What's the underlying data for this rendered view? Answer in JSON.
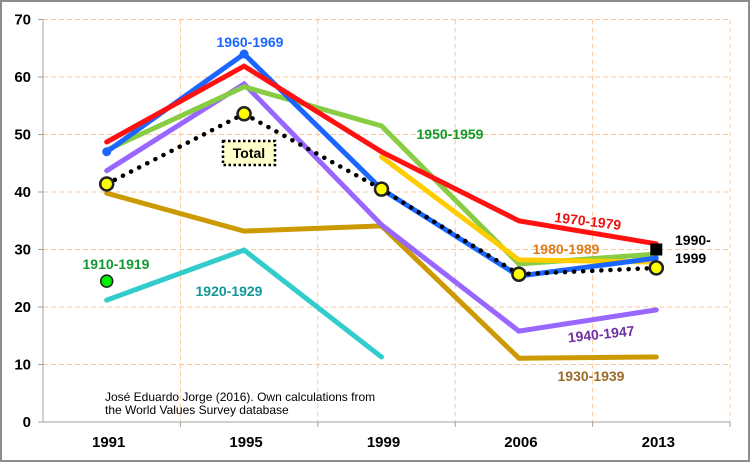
{
  "chart_data": {
    "type": "line",
    "title": "",
    "xlabel": "",
    "ylabel": "",
    "x": [
      "1991",
      "1995",
      "1999",
      "2006",
      "2013"
    ],
    "ylim": [
      0,
      70
    ],
    "yticks": [
      0,
      10,
      20,
      30,
      40,
      50,
      60,
      70
    ],
    "grid": true,
    "series": [
      {
        "name": "1930-1939",
        "color": "#cc9900",
        "values": [
          39.8,
          33.2,
          34.1,
          11.1,
          11.3
        ]
      },
      {
        "name": "1920-1929",
        "color": "#33cccc",
        "values": [
          21.2,
          29.9,
          11.3,
          null,
          null
        ]
      },
      {
        "name": "1940-1947",
        "color": "#9966ff",
        "values": [
          43.7,
          58.8,
          34.3,
          15.8,
          19.5
        ]
      },
      {
        "name": "1950-1959",
        "color": "#88cc44",
        "values": [
          47.3,
          58.3,
          51.5,
          27.5,
          29.2
        ]
      },
      {
        "name": "1980-1989",
        "color": "#ffcc00",
        "values": [
          null,
          null,
          46.1,
          28.2,
          27.8
        ]
      },
      {
        "name": "1960-1969",
        "color": "#1a66ff",
        "values": [
          47.0,
          64.0,
          40.5,
          25.4,
          28.5
        ]
      },
      {
        "name": "1970-1979",
        "color": "#ff1111",
        "values": [
          48.7,
          61.9,
          47.0,
          35.0,
          31.0
        ]
      },
      {
        "name": "Total",
        "color": "#000000",
        "style": "dotted",
        "marker": "yellow-circle",
        "values": [
          41.4,
          53.6,
          40.5,
          25.7,
          26.8
        ]
      },
      {
        "name": "1910-1919",
        "color": "#00ee00",
        "marker": "green-circle",
        "values": [
          24.5,
          null,
          null,
          null,
          null
        ]
      },
      {
        "name": "1990-1999",
        "color": "#000000",
        "marker": "black-square",
        "values": [
          null,
          null,
          null,
          null,
          30.0
        ]
      }
    ],
    "labels": {
      "s1960": {
        "text": "1960-1969",
        "color": "#1a66ff"
      },
      "s1950": {
        "text": "1950-1959",
        "color": "#119922"
      },
      "s1970": {
        "text": "1970-1979",
        "color": "#ee1111"
      },
      "s1980": {
        "text": "1980-1989",
        "color": "#e07a1a"
      },
      "s1990a": {
        "text": "1990-",
        "color": "#000000"
      },
      "s1990b": {
        "text": "1999",
        "color": "#000000"
      },
      "s1910": {
        "text": "1910-1919",
        "color": "#119933"
      },
      "s1920": {
        "text": "1920-1929",
        "color": "#119999"
      },
      "s1940": {
        "text": "1940-1947",
        "color": "#7030a0"
      },
      "s1930": {
        "text": "1930-1939",
        "color": "#9c6a2a"
      },
      "total": {
        "text": "Total",
        "color": "#000000"
      }
    },
    "source_line1": "José Eduardo Jorge (2016). Own calculations from",
    "source_line2": "the World Values Survey database"
  }
}
